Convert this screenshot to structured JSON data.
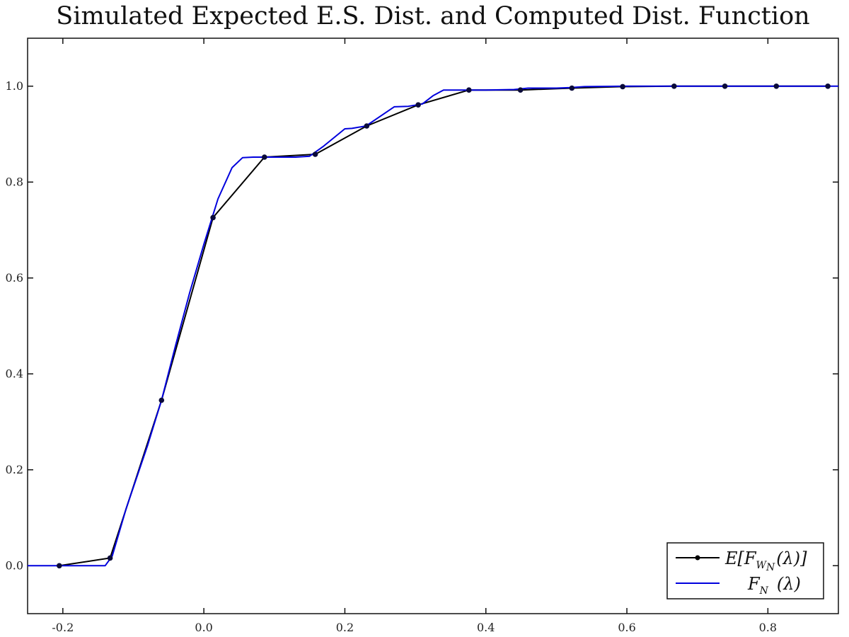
{
  "chart_data": {
    "type": "line",
    "title": "Simulated Expected E.S. Dist. and Computed Dist. Function",
    "xlabel": "",
    "ylabel": "",
    "xlim": [
      -0.25,
      0.9
    ],
    "ylim": [
      -0.1,
      1.1
    ],
    "xticks": [
      -0.2,
      0.0,
      0.2,
      0.4,
      0.6,
      0.8
    ],
    "xtick_labels": [
      "-0.2",
      "0.0",
      "0.2",
      "0.4",
      "0.6",
      "0.8"
    ],
    "yticks": [
      0.0,
      0.2,
      0.4,
      0.6,
      0.8,
      1.0
    ],
    "ytick_labels": [
      "0.0",
      "0.2",
      "0.4",
      "0.6",
      "0.8",
      "1.0"
    ],
    "grid": false,
    "legend_position": "bottom-right",
    "series": [
      {
        "name": "E[F_{W_N}(λ)]",
        "legend_main": "E[F",
        "legend_sub": "W",
        "legend_subsub": "N",
        "legend_tail": "(λ)]",
        "style": "line-with-markers",
        "color": "#000000",
        "x": [
          -0.205,
          -0.133,
          -0.06,
          0.013,
          0.086,
          0.158,
          0.231,
          0.304,
          0.376,
          0.449,
          0.522,
          0.594,
          0.667,
          0.739,
          0.812,
          0.885
        ],
        "y": [
          0.0,
          0.016,
          0.345,
          0.726,
          0.852,
          0.858,
          0.917,
          0.961,
          0.992,
          0.992,
          0.996,
          0.999,
          1.0,
          1.0,
          1.0,
          1.0
        ]
      },
      {
        "name": "F_N (λ)",
        "legend_main": "F",
        "legend_sub": "N",
        "legend_tail": "(λ)",
        "style": "line",
        "color": "#0000dd",
        "x": [
          -0.25,
          -0.14,
          -0.13,
          -0.11,
          -0.08,
          -0.06,
          -0.04,
          -0.02,
          0.0,
          0.02,
          0.04,
          0.055,
          0.07,
          0.1,
          0.13,
          0.15,
          0.17,
          0.2,
          0.21,
          0.23,
          0.25,
          0.27,
          0.29,
          0.31,
          0.325,
          0.34,
          0.36,
          0.4,
          0.44,
          0.46,
          0.5,
          0.52,
          0.54,
          0.6,
          0.7,
          0.8,
          0.9
        ],
        "y": [
          0.0,
          0.0,
          0.02,
          0.12,
          0.25,
          0.345,
          0.46,
          0.57,
          0.67,
          0.765,
          0.83,
          0.851,
          0.852,
          0.852,
          0.852,
          0.854,
          0.875,
          0.911,
          0.912,
          0.917,
          0.937,
          0.957,
          0.958,
          0.963,
          0.98,
          0.992,
          0.992,
          0.992,
          0.993,
          0.996,
          0.996,
          0.997,
          0.999,
          1.0,
          1.0,
          1.0,
          1.0
        ]
      }
    ]
  }
}
